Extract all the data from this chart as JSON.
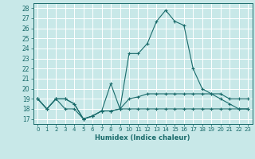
{
  "xlabel": "Humidex (Indice chaleur)",
  "xlim": [
    -0.5,
    23.5
  ],
  "ylim": [
    16.5,
    28.5
  ],
  "yticks": [
    17,
    18,
    19,
    20,
    21,
    22,
    23,
    24,
    25,
    26,
    27,
    28
  ],
  "xticks": [
    0,
    1,
    2,
    3,
    4,
    5,
    6,
    7,
    8,
    9,
    10,
    11,
    12,
    13,
    14,
    15,
    16,
    17,
    18,
    19,
    20,
    21,
    22,
    23
  ],
  "bg_color": "#c8e8e8",
  "grid_color": "#ffffff",
  "line_color": "#1a6b6b",
  "hours": [
    0,
    1,
    2,
    3,
    4,
    5,
    6,
    7,
    8,
    9,
    10,
    11,
    12,
    13,
    14,
    15,
    16,
    17,
    18,
    19,
    20,
    21,
    22,
    23
  ],
  "line_min": [
    19,
    18,
    19,
    18,
    18,
    17,
    17.3,
    17.8,
    17.8,
    18,
    18,
    18,
    18,
    18,
    18,
    18,
    18,
    18,
    18,
    18,
    18,
    18,
    18,
    18
  ],
  "line_avg": [
    19,
    18,
    19,
    19,
    18.5,
    17,
    17.3,
    17.8,
    17.8,
    18,
    19,
    19.2,
    19.5,
    19.5,
    19.5,
    19.5,
    19.5,
    19.5,
    19.5,
    19.5,
    19.5,
    19,
    19,
    19
  ],
  "line_max": [
    19,
    18,
    19,
    19,
    18.5,
    17,
    17.3,
    17.8,
    20.5,
    18,
    23.5,
    23.5,
    24.5,
    26.7,
    27.8,
    26.7,
    26.3,
    22,
    20,
    19.5,
    19,
    18.5,
    18,
    18
  ]
}
